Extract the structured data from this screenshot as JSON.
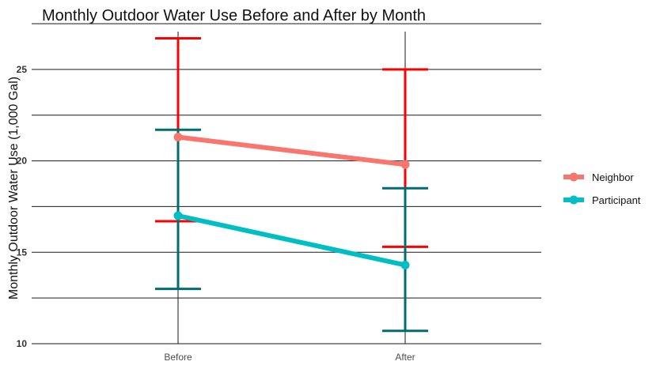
{
  "chart_data": {
    "type": "line",
    "title": "Monthly Outdoor Water Use Before and After by Month",
    "xlabel": "",
    "ylabel": "Monthly Outdoor Water Use (1,000 Gal)",
    "categories": [
      "Before",
      "After"
    ],
    "ylim": [
      10,
      27.5
    ],
    "yticks": [
      10,
      15,
      20,
      25
    ],
    "grid": true,
    "legend_position": "right",
    "series": [
      {
        "name": "Neighbor",
        "values": [
          21.3,
          19.8
        ],
        "error_low": [
          16.7,
          15.3
        ],
        "error_high": [
          26.7,
          25.0
        ],
        "color": "#F8766D",
        "errorbar_color": "#FF0000"
      },
      {
        "name": "Participant",
        "values": [
          17.0,
          14.3
        ],
        "error_low": [
          13.0,
          10.7
        ],
        "error_high": [
          21.7,
          18.5
        ],
        "color": "#00BFC4",
        "errorbar_color": "#006D6F"
      }
    ]
  }
}
